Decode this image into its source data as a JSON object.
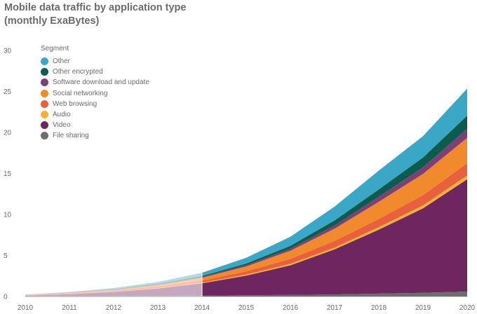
{
  "title_lines": [
    "Mobile data traffic by application type",
    "(monthly ExaBytes)"
  ],
  "legend": {
    "title": "Segment",
    "items": [
      {
        "label": "Other",
        "color": "#3aa7c6"
      },
      {
        "label": "Other encrypted",
        "color": "#0b5c4c"
      },
      {
        "label": "Software download and update",
        "color": "#7d3f76"
      },
      {
        "label": "Social networking",
        "color": "#f08a2c"
      },
      {
        "label": "Web browsing",
        "color": "#e8603c"
      },
      {
        "label": "Audio",
        "color": "#f5b335"
      },
      {
        "label": "Video",
        "color": "#6e2660"
      },
      {
        "label": "File sharing",
        "color": "#6e6e6e"
      }
    ]
  },
  "chart_data": {
    "type": "area",
    "stacked": true,
    "x": [
      2010,
      2011,
      2012,
      2013,
      2014,
      2015,
      2016,
      2017,
      2018,
      2019,
      2020
    ],
    "ylim": [
      0,
      30
    ],
    "yticks": [
      0,
      5,
      10,
      15,
      20,
      25,
      30
    ],
    "faded_before": 2014,
    "series": [
      {
        "name": "File sharing",
        "color": "#6e6e6e",
        "values": [
          0.01,
          0.03,
          0.05,
          0.07,
          0.1,
          0.15,
          0.2,
          0.25,
          0.35,
          0.45,
          0.6
        ]
      },
      {
        "name": "Video",
        "color": "#6e2660",
        "values": [
          0.1,
          0.25,
          0.5,
          0.9,
          1.5,
          2.4,
          3.6,
          5.5,
          7.8,
          10.3,
          13.7
        ]
      },
      {
        "name": "Audio",
        "color": "#f5b335",
        "values": [
          0.01,
          0.02,
          0.03,
          0.05,
          0.08,
          0.12,
          0.18,
          0.22,
          0.3,
          0.35,
          0.45
        ]
      },
      {
        "name": "Web browsing",
        "color": "#e8603c",
        "values": [
          0.03,
          0.08,
          0.12,
          0.18,
          0.25,
          0.4,
          0.6,
          0.8,
          1.0,
          1.25,
          1.5
        ]
      },
      {
        "name": "Social networking",
        "color": "#f08a2c",
        "values": [
          0.02,
          0.05,
          0.1,
          0.2,
          0.35,
          0.6,
          1.0,
          1.5,
          2.1,
          2.6,
          3.1
        ]
      },
      {
        "name": "Software download and update",
        "color": "#7d3f76",
        "values": [
          0.01,
          0.02,
          0.04,
          0.06,
          0.1,
          0.15,
          0.25,
          0.4,
          0.6,
          0.8,
          1.1
        ]
      },
      {
        "name": "Other encrypted",
        "color": "#0b5c4c",
        "values": [
          0.01,
          0.02,
          0.04,
          0.07,
          0.12,
          0.2,
          0.35,
          0.6,
          0.9,
          1.2,
          1.6
        ]
      },
      {
        "name": "Other",
        "color": "#3aa7c6",
        "values": [
          0.04,
          0.08,
          0.15,
          0.25,
          0.4,
          0.7,
          1.1,
          1.7,
          2.3,
          2.6,
          3.3
        ]
      }
    ]
  }
}
